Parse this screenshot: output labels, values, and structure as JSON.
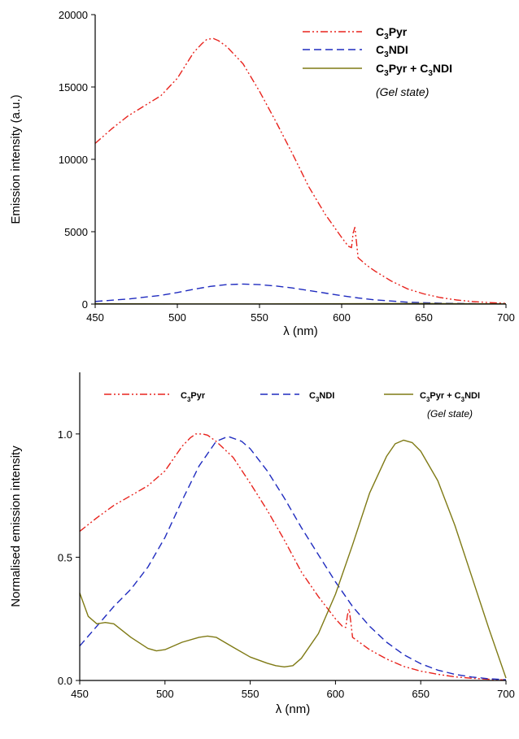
{
  "colors": {
    "C3Pyr": "#e8231d",
    "C3NDI": "#1f2bbf",
    "Gel": "#7f7a15",
    "axis": "#000000"
  },
  "chart_data": [
    {
      "type": "line",
      "title": "",
      "xlabel": "λ (nm)",
      "ylabel": "Emission intensity (a.u.)",
      "xlim": [
        450,
        700
      ],
      "ylim": [
        0,
        20000
      ],
      "xticks": [
        450,
        500,
        550,
        600,
        650,
        700
      ],
      "yticks": [
        0,
        5000,
        10000,
        15000,
        20000
      ],
      "legend_position": "top-right",
      "legend_entries": [
        {
          "main": "C",
          "sub": "3",
          "rest": "Pyr",
          "extra": ""
        },
        {
          "main": "C",
          "sub": "3",
          "rest": "NDI",
          "extra": ""
        },
        {
          "main": "C",
          "sub": "3",
          "rest": "Pyr + C",
          "sub2": "3",
          "rest2": "NDI",
          "extra": "(Gel state)"
        }
      ],
      "series": [
        {
          "name": "C3Pyr",
          "style": "dash-dot-dot",
          "x": [
            450,
            460,
            470,
            480,
            490,
            500,
            505,
            510,
            515,
            518,
            522,
            525,
            530,
            540,
            550,
            560,
            570,
            580,
            590,
            600,
            604,
            606,
            607,
            608,
            609,
            610,
            615,
            620,
            630,
            640,
            650,
            660,
            670,
            680,
            690,
            700
          ],
          "y": [
            11100,
            12100,
            13000,
            13700,
            14400,
            15600,
            16500,
            17400,
            18000,
            18300,
            18350,
            18200,
            17800,
            16600,
            14700,
            12600,
            10400,
            8100,
            6200,
            4600,
            4000,
            3900,
            4900,
            5300,
            4300,
            3200,
            2700,
            2300,
            1600,
            1050,
            700,
            450,
            280,
            170,
            100,
            50
          ]
        },
        {
          "name": "C3NDI",
          "style": "dashed",
          "x": [
            450,
            470,
            490,
            500,
            510,
            520,
            530,
            540,
            550,
            560,
            570,
            580,
            590,
            600,
            610,
            620,
            640,
            660,
            680,
            700
          ],
          "y": [
            180,
            350,
            600,
            800,
            1020,
            1220,
            1340,
            1380,
            1340,
            1250,
            1110,
            940,
            760,
            580,
            420,
            290,
            130,
            60,
            25,
            10
          ]
        },
        {
          "name": "C3Pyr + C3NDI (Gel state)",
          "style": "solid",
          "x": [
            450,
            500,
            550,
            600,
            650,
            700
          ],
          "y": [
            20,
            10,
            10,
            20,
            40,
            10
          ]
        }
      ]
    },
    {
      "type": "line",
      "title": "",
      "xlabel": "λ (nm)",
      "ylabel": "Normalised emission intensity",
      "xlim": [
        450,
        700
      ],
      "ylim": [
        0,
        1.25
      ],
      "xticks": [
        450,
        500,
        550,
        600,
        650,
        700
      ],
      "yticks": [
        0.0,
        0.5,
        1.0
      ],
      "ytick_labels": [
        "0.0",
        "0.5",
        "1.0"
      ],
      "legend_position": "top",
      "legend_entries": [
        {
          "main": "C",
          "sub": "3",
          "rest": "Pyr",
          "extra": ""
        },
        {
          "main": "C",
          "sub": "3",
          "rest": "NDI",
          "extra": ""
        },
        {
          "main": "C",
          "sub": "3",
          "rest": "Pyr + C",
          "sub2": "3",
          "rest2": "NDI",
          "extra": "(Gel state)"
        }
      ],
      "series": [
        {
          "name": "C3Pyr",
          "style": "dash-dot-dot",
          "x": [
            450,
            460,
            470,
            480,
            490,
            500,
            505,
            510,
            515,
            518,
            522,
            525,
            530,
            540,
            550,
            560,
            570,
            580,
            590,
            600,
            604,
            606,
            607,
            608,
            609,
            610,
            615,
            620,
            630,
            640,
            650,
            660,
            670,
            680,
            690,
            700
          ],
          "y": [
            0.605,
            0.66,
            0.71,
            0.75,
            0.79,
            0.85,
            0.9,
            0.95,
            0.985,
            1.0,
            1.0,
            0.995,
            0.97,
            0.905,
            0.8,
            0.69,
            0.57,
            0.44,
            0.34,
            0.25,
            0.22,
            0.215,
            0.265,
            0.29,
            0.235,
            0.175,
            0.15,
            0.125,
            0.087,
            0.057,
            0.038,
            0.025,
            0.015,
            0.009,
            0.005,
            0.002
          ]
        },
        {
          "name": "C3NDI",
          "style": "dashed",
          "x": [
            450,
            460,
            470,
            480,
            490,
            500,
            510,
            520,
            530,
            537,
            545,
            550,
            560,
            570,
            580,
            590,
            600,
            610,
            620,
            630,
            640,
            650,
            660,
            670,
            680,
            690,
            700
          ],
          "y": [
            0.14,
            0.22,
            0.3,
            0.37,
            0.46,
            0.58,
            0.73,
            0.87,
            0.97,
            0.99,
            0.97,
            0.94,
            0.85,
            0.74,
            0.62,
            0.51,
            0.4,
            0.3,
            0.22,
            0.155,
            0.105,
            0.068,
            0.042,
            0.025,
            0.014,
            0.007,
            0.003
          ]
        },
        {
          "name": "C3Pyr + C3NDI (Gel state)",
          "style": "solid",
          "x": [
            450,
            455,
            460,
            465,
            470,
            480,
            490,
            495,
            500,
            510,
            520,
            525,
            530,
            540,
            550,
            560,
            565,
            570,
            575,
            580,
            590,
            600,
            610,
            620,
            630,
            635,
            640,
            645,
            650,
            660,
            670,
            680,
            690,
            700
          ],
          "y": [
            0.355,
            0.26,
            0.23,
            0.235,
            0.23,
            0.175,
            0.13,
            0.12,
            0.125,
            0.155,
            0.175,
            0.18,
            0.175,
            0.135,
            0.095,
            0.07,
            0.06,
            0.055,
            0.06,
            0.09,
            0.19,
            0.35,
            0.55,
            0.76,
            0.91,
            0.96,
            0.975,
            0.965,
            0.93,
            0.81,
            0.63,
            0.42,
            0.21,
            0.01
          ]
        }
      ]
    }
  ]
}
